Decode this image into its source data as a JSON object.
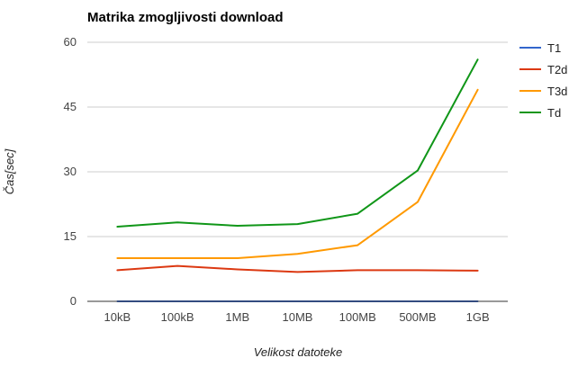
{
  "chart_data": {
    "type": "line",
    "title": "Matrika zmogljivosti download",
    "xlabel": "Velikost datoteke",
    "ylabel": "Čas[sec]",
    "categories": [
      "10kB",
      "100kB",
      "1MB",
      "10MB",
      "100MB",
      "500MB",
      "1GB"
    ],
    "ylim": [
      0,
      60
    ],
    "yticks": [
      0,
      15,
      30,
      45,
      60
    ],
    "grid": true,
    "legend_position": "right",
    "series": [
      {
        "name": "T1",
        "color": "#3366cc",
        "values": [
          0,
          0,
          0,
          0,
          0,
          0,
          0
        ]
      },
      {
        "name": "T2d",
        "color": "#dc3912",
        "values": [
          7.2,
          8.2,
          7.4,
          6.8,
          7.2,
          7.2,
          7.1
        ]
      },
      {
        "name": "T3d",
        "color": "#ff9900",
        "values": [
          10,
          10,
          10,
          11,
          13,
          23,
          49
        ]
      },
      {
        "name": "Td",
        "color": "#109618",
        "values": [
          17.3,
          18.3,
          17.5,
          17.9,
          20.3,
          30.3,
          56
        ]
      }
    ]
  }
}
